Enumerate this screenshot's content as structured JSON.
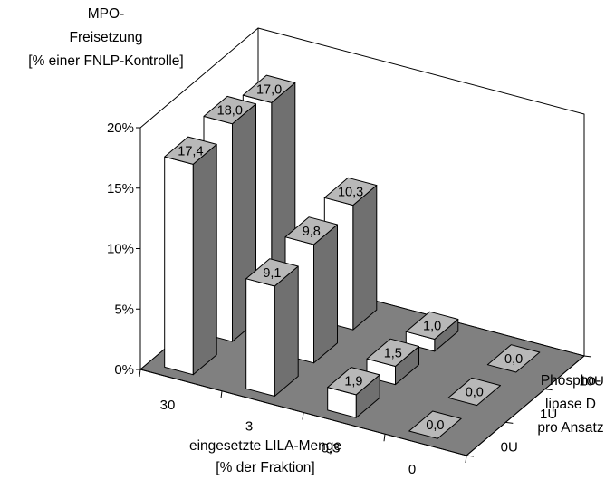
{
  "chart_data": {
    "type": "bar",
    "subtype": "3d-column-grid",
    "ylabel_lines": [
      "MPO-",
      "Freisetzung",
      "[% einer FNLP-Kontrolle]"
    ],
    "xlabel_lines": [
      "eingesetzte LILA-Menge",
      "[% der Fraktion]"
    ],
    "zlabel_lines": [
      "Phospho-",
      "lipase D",
      "pro Ansatz"
    ],
    "categories": [
      "30",
      "3",
      "0,3",
      "0"
    ],
    "depth_categories": [
      "0U",
      "1U",
      "10U"
    ],
    "y_ticks": [
      "0%",
      "5%",
      "10%",
      "15%",
      "20%"
    ],
    "ylim": [
      0,
      20
    ],
    "series": [
      {
        "name": "0U",
        "values": [
          17.4,
          9.1,
          1.9,
          0.0
        ],
        "labels": [
          "17,4",
          "9,1",
          "1,9",
          "0,0"
        ]
      },
      {
        "name": "1U",
        "values": [
          18.0,
          9.8,
          1.5,
          0.0
        ],
        "labels": [
          "18,0",
          "9,8",
          "1,5",
          "0,0"
        ]
      },
      {
        "name": "10U",
        "values": [
          17.0,
          10.3,
          1.0,
          0.0
        ],
        "labels": [
          "17,0",
          "10,3",
          "1,0",
          "0,0"
        ]
      }
    ],
    "colors": {
      "bar_front": "#ffffff",
      "bar_side": "#707070",
      "bar_top": "#b8b8b8",
      "floor": "#808080",
      "walls": "#ffffff"
    },
    "grid": false
  }
}
